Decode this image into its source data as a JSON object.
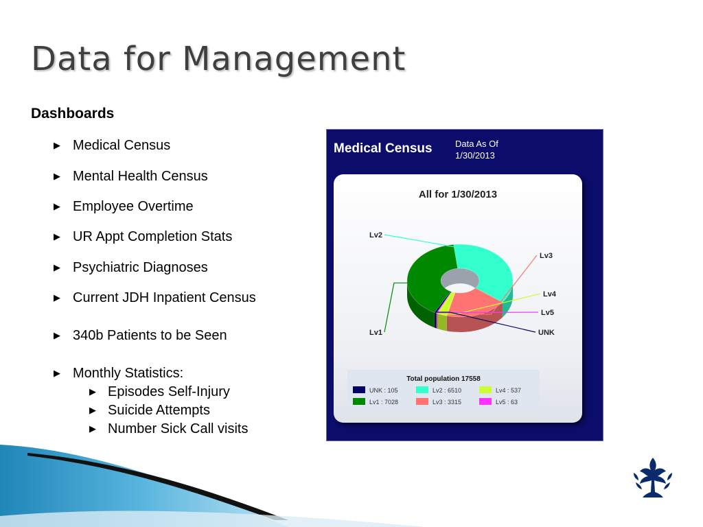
{
  "slide": {
    "title": "Data for Management",
    "subheading": "Dashboards",
    "bullets": [
      "Medical Census",
      "Mental Health Census",
      "Employee Overtime",
      "UR Appt Completion Stats",
      "Psychiatric Diagnoses",
      "Current JDH Inpatient Census",
      "340b Patients to be Seen",
      "Monthly Statistics:"
    ],
    "sub_bullets": [
      "Episodes Self-Injury",
      "Suicide Attempts",
      "Number Sick Call visits"
    ]
  },
  "dashboard": {
    "title": "Medical Census",
    "as_of_line1": "Data As Of",
    "as_of_line2": "1/30/2013"
  },
  "chart_data": {
    "type": "pie",
    "title": "All for 1/30/2013",
    "legend_title": "Total population 17558",
    "legend_placement": "bottom",
    "slices": [
      {
        "label": "Lv2",
        "value": 6510,
        "color": "#33ffcc",
        "legend": "Lv2 : 6510"
      },
      {
        "label": "Lv3",
        "value": 3315,
        "color": "#ff7373",
        "legend": "Lv3 : 3315"
      },
      {
        "label": "Lv4",
        "value": 537,
        "color": "#ccff33",
        "legend": "Lv4 : 537"
      },
      {
        "label": "Lv5",
        "value": 63,
        "color": "#ff33ff",
        "legend": "Lv5 : 63"
      },
      {
        "label": "UNK",
        "value": 105,
        "color": "#000066",
        "legend": "UNK : 105"
      },
      {
        "label": "Lv1",
        "value": 7028,
        "color": "#008800",
        "legend": "Lv1 : 7028"
      }
    ],
    "legend_order": [
      "UNK",
      "Lv2",
      "Lv4",
      "Lv1",
      "Lv3",
      "Lv5"
    ]
  }
}
